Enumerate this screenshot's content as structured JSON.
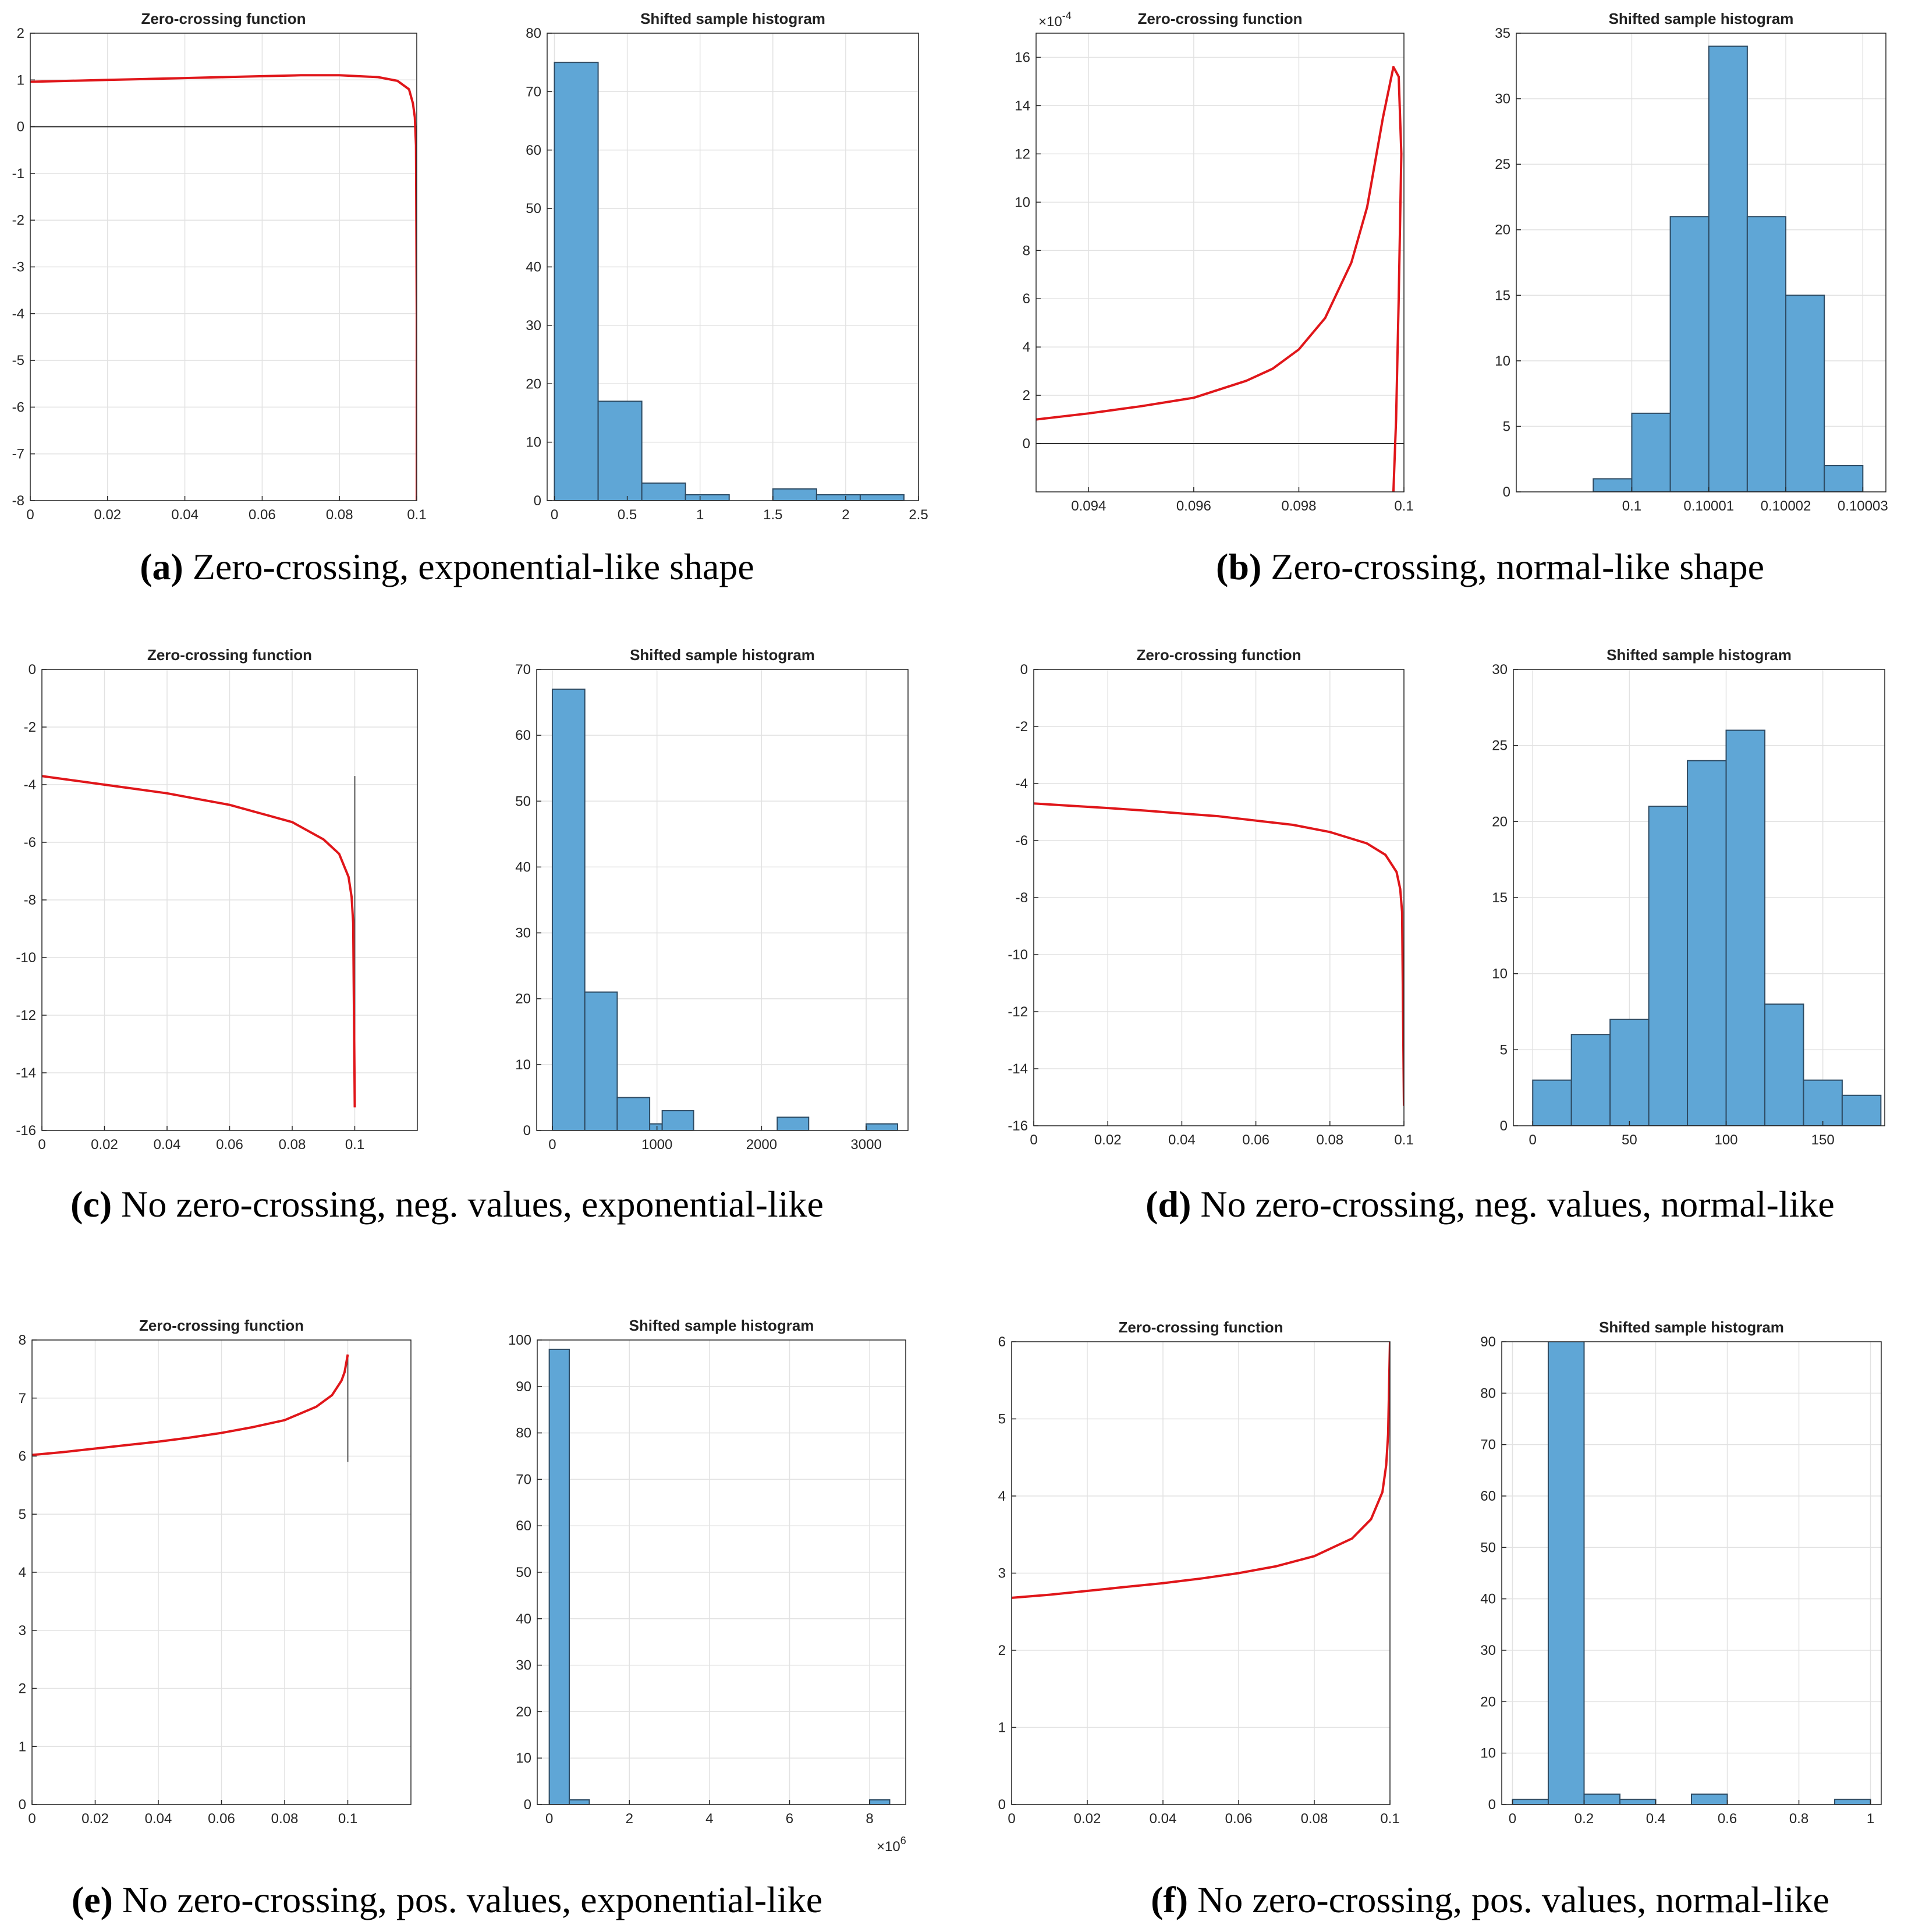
{
  "colors": {
    "curve": "#e0161a",
    "bar_fill": "#5fa6d6",
    "bar_edge": "#2e4b63",
    "grid": "#e2e2e2",
    "axis": "#262626",
    "zero_line": "#333333"
  },
  "captions": [
    {
      "label": "(a)",
      "text": "Zero-crossing, exponential-like shape"
    },
    {
      "label": "(b)",
      "text": "Zero-crossing, normal-like shape"
    },
    {
      "label": "(c)",
      "text": "No zero-crossing, neg. values, exponential-like"
    },
    {
      "label": "(d)",
      "text": "No zero-crossing, neg. values, normal-like"
    },
    {
      "label": "(e)",
      "text": "No zero-crossing, pos. values, exponential-like"
    },
    {
      "label": "(f)",
      "text": "No zero-crossing, pos. values, normal-like"
    }
  ],
  "chart_data": [
    {
      "id": "a1",
      "type": "line",
      "title": "Zero-crossing function",
      "xlim": [
        0,
        0.1
      ],
      "ylim": [
        -8,
        2
      ],
      "xticks": [
        0,
        0.02,
        0.04,
        0.06,
        0.08,
        0.1
      ],
      "xtick_labels": [
        "0",
        "0.02",
        "0.04",
        "0.06",
        "0.08",
        "0.1"
      ],
      "yticks": [
        -8,
        -7,
        -6,
        -5,
        -4,
        -3,
        -2,
        -1,
        0,
        1,
        2
      ],
      "ytick_labels": [
        "-8",
        "-7",
        "-6",
        "-5",
        "-4",
        "-3",
        "-2",
        "-1",
        "0",
        "1",
        "2"
      ],
      "zero_line": true,
      "x": [
        0,
        0.01,
        0.02,
        0.03,
        0.04,
        0.05,
        0.06,
        0.07,
        0.08,
        0.09,
        0.095,
        0.098,
        0.099,
        0.0995,
        0.0998,
        0.1,
        0.1
      ],
      "y": [
        0.96,
        0.98,
        1.0,
        1.02,
        1.04,
        1.06,
        1.08,
        1.1,
        1.1,
        1.06,
        0.98,
        0.8,
        0.5,
        0.2,
        -0.4,
        -4,
        -8
      ]
    },
    {
      "id": "a2",
      "type": "bar",
      "title": "Shifted sample histogram",
      "xlim": [
        -0.05,
        2.5
      ],
      "ylim": [
        0,
        80
      ],
      "xticks": [
        0,
        0.5,
        1,
        1.5,
        2,
        2.5
      ],
      "xtick_labels": [
        "0",
        "0.5",
        "1",
        "1.5",
        "2",
        "2.5"
      ],
      "yticks": [
        0,
        10,
        20,
        30,
        40,
        50,
        60,
        70,
        80
      ],
      "ytick_labels": [
        "0",
        "10",
        "20",
        "30",
        "40",
        "50",
        "60",
        "70",
        "80"
      ],
      "bin_edges": [
        0,
        0.3,
        0.6,
        0.9,
        1.2,
        1.5,
        1.8,
        2.1,
        2.4
      ],
      "values": [
        75,
        17,
        3,
        1,
        0,
        2,
        1,
        1
      ]
    },
    {
      "id": "b1",
      "type": "line",
      "title": "Zero-crossing function",
      "xlim": [
        0.093,
        0.1
      ],
      "ylim": [
        -2,
        17
      ],
      "xticks": [
        0.094,
        0.096,
        0.098,
        0.1
      ],
      "xtick_labels": [
        "0.094",
        "0.096",
        "0.098",
        "0.1"
      ],
      "yticks": [
        0,
        2,
        4,
        6,
        8,
        10,
        12,
        14,
        16
      ],
      "ytick_labels": [
        "0",
        "2",
        "4",
        "6",
        "8",
        "10",
        "12",
        "14",
        "16"
      ],
      "exponent_label": "×10",
      "exponent_power": "-4",
      "zero_line": true,
      "x": [
        0.093,
        0.094,
        0.095,
        0.096,
        0.097,
        0.0975,
        0.098,
        0.0985,
        0.099,
        0.0993,
        0.0996,
        0.0998,
        0.0999,
        0.09995,
        0.0999,
        0.09985,
        0.0998
      ],
      "y": [
        1.0,
        1.25,
        1.55,
        1.9,
        2.6,
        3.1,
        3.9,
        5.2,
        7.5,
        9.8,
        13.5,
        15.6,
        15.2,
        12.0,
        6.0,
        1.0,
        -2.0
      ]
    },
    {
      "id": "b2",
      "type": "bar",
      "title": "Shifted sample histogram",
      "xlim": [
        0.099985,
        0.100033
      ],
      "ylim": [
        0,
        35
      ],
      "xticks": [
        0.1,
        0.10001,
        0.10002,
        0.10003
      ],
      "xtick_labels": [
        "0.1",
        "0.10001",
        "0.10002",
        "0.10003"
      ],
      "yticks": [
        0,
        5,
        10,
        15,
        20,
        25,
        30,
        35
      ],
      "ytick_labels": [
        "0",
        "5",
        "10",
        "15",
        "20",
        "25",
        "30",
        "35"
      ],
      "bin_edges": [
        0.099995,
        0.1,
        0.100005,
        0.10001,
        0.100015,
        0.10002,
        0.100025,
        0.10003
      ],
      "values": [
        1,
        6,
        21,
        34,
        21,
        15,
        2
      ]
    },
    {
      "id": "c1",
      "type": "line",
      "title": "Zero-crossing function",
      "xlim": [
        0,
        0.12
      ],
      "ylim": [
        -16,
        0
      ],
      "xticks": [
        0,
        0.02,
        0.04,
        0.06,
        0.08,
        0.1
      ],
      "xtick_labels": [
        "0",
        "0.02",
        "0.04",
        "0.06",
        "0.08",
        "0.1"
      ],
      "yticks": [
        -16,
        -14,
        -12,
        -10,
        -8,
        -6,
        -4,
        -2,
        0
      ],
      "ytick_labels": [
        "-16",
        "-14",
        "-12",
        "-10",
        "-8",
        "-6",
        "-4",
        "-2",
        "0"
      ],
      "zero_line": false,
      "vline": {
        "x": 0.1,
        "y0": -15,
        "y1": -3.7
      },
      "x": [
        0,
        0.01,
        0.02,
        0.03,
        0.04,
        0.05,
        0.06,
        0.07,
        0.08,
        0.09,
        0.095,
        0.098,
        0.099,
        0.0995,
        0.1
      ],
      "y": [
        -3.7,
        -3.85,
        -4.0,
        -4.15,
        -4.3,
        -4.5,
        -4.7,
        -5.0,
        -5.3,
        -5.9,
        -6.4,
        -7.2,
        -7.9,
        -8.8,
        -15.2
      ]
    },
    {
      "id": "c2",
      "type": "bar",
      "title": "Shifted sample histogram",
      "xlim": [
        -150,
        3400
      ],
      "ylim": [
        0,
        70
      ],
      "xticks": [
        0,
        1000,
        2000,
        3000
      ],
      "xtick_labels": [
        "0",
        "1000",
        "2000",
        "3000"
      ],
      "yticks": [
        0,
        10,
        20,
        30,
        40,
        50,
        60,
        70
      ],
      "ytick_labels": [
        "0",
        "10",
        "20",
        "30",
        "40",
        "50",
        "60",
        "70"
      ],
      "bin_edges": [
        0,
        310,
        620,
        930,
        1050,
        1350,
        2150,
        2450,
        3000,
        3300
      ],
      "values": [
        67,
        21,
        5,
        1,
        3,
        0,
        2,
        0,
        1
      ]
    },
    {
      "id": "d1",
      "type": "line",
      "title": "Zero-crossing function",
      "xlim": [
        0,
        0.1
      ],
      "ylim": [
        -16,
        0
      ],
      "xticks": [
        0,
        0.02,
        0.04,
        0.06,
        0.08,
        0.1
      ],
      "xtick_labels": [
        "0",
        "0.02",
        "0.04",
        "0.06",
        "0.08",
        "0.1"
      ],
      "yticks": [
        -16,
        -14,
        -12,
        -10,
        -8,
        -6,
        -4,
        -2,
        0
      ],
      "ytick_labels": [
        "-16",
        "-14",
        "-12",
        "-10",
        "-8",
        "-6",
        "-4",
        "-2",
        "0"
      ],
      "zero_line": false,
      "x": [
        0,
        0.01,
        0.02,
        0.03,
        0.04,
        0.05,
        0.06,
        0.07,
        0.08,
        0.09,
        0.095,
        0.098,
        0.099,
        0.0995,
        0.1
      ],
      "y": [
        -4.7,
        -4.78,
        -4.86,
        -4.95,
        -5.05,
        -5.15,
        -5.3,
        -5.45,
        -5.7,
        -6.1,
        -6.5,
        -7.1,
        -7.7,
        -8.5,
        -15.3
      ]
    },
    {
      "id": "d2",
      "type": "bar",
      "title": "Shifted sample histogram",
      "xlim": [
        -10,
        182
      ],
      "ylim": [
        0,
        30
      ],
      "xticks": [
        0,
        50,
        100,
        150
      ],
      "xtick_labels": [
        "0",
        "50",
        "100",
        "150"
      ],
      "yticks": [
        0,
        5,
        10,
        15,
        20,
        25,
        30
      ],
      "ytick_labels": [
        "0",
        "5",
        "10",
        "15",
        "20",
        "25",
        "30"
      ],
      "bin_edges": [
        0,
        20,
        40,
        60,
        80,
        100,
        120,
        140,
        160,
        180
      ],
      "values": [
        3,
        6,
        7,
        21,
        24,
        26,
        8,
        3,
        2
      ]
    },
    {
      "id": "e1",
      "type": "line",
      "title": "Zero-crossing function",
      "xlim": [
        0,
        0.12
      ],
      "ylim": [
        0,
        8
      ],
      "xticks": [
        0,
        0.02,
        0.04,
        0.06,
        0.08,
        0.1
      ],
      "xtick_labels": [
        "0",
        "0.02",
        "0.04",
        "0.06",
        "0.08",
        "0.1"
      ],
      "yticks": [
        0,
        1,
        2,
        3,
        4,
        5,
        6,
        7,
        8
      ],
      "ytick_labels": [
        "0",
        "1",
        "2",
        "3",
        "4",
        "5",
        "6",
        "7",
        "8"
      ],
      "zero_line": false,
      "vline": {
        "x": 0.1,
        "y0": 5.9,
        "y1": 7.7
      },
      "x": [
        0,
        0.01,
        0.02,
        0.03,
        0.04,
        0.05,
        0.06,
        0.07,
        0.08,
        0.09,
        0.095,
        0.098,
        0.099,
        0.1
      ],
      "y": [
        6.02,
        6.07,
        6.13,
        6.19,
        6.25,
        6.32,
        6.4,
        6.5,
        6.62,
        6.85,
        7.05,
        7.3,
        7.45,
        7.75
      ]
    },
    {
      "id": "e2",
      "type": "bar",
      "title": "Shifted sample histogram",
      "xlim": [
        -0.3,
        8.9
      ],
      "ylim": [
        0,
        100
      ],
      "xticks": [
        0,
        2,
        4,
        6,
        8
      ],
      "xtick_labels": [
        "0",
        "2",
        "4",
        "6",
        "8"
      ],
      "yticks": [
        0,
        10,
        20,
        30,
        40,
        50,
        60,
        70,
        80,
        90,
        100
      ],
      "ytick_labels": [
        "0",
        "10",
        "20",
        "30",
        "40",
        "50",
        "60",
        "70",
        "80",
        "90",
        "100"
      ],
      "exponent_label": "×10",
      "exponent_power": "6",
      "exponent_position": "bottom-right",
      "bin_edges": [
        0,
        0.5,
        1.0,
        8.0,
        8.5
      ],
      "values": [
        98,
        1,
        0,
        1
      ]
    },
    {
      "id": "f1",
      "type": "line",
      "title": "Zero-crossing function",
      "xlim": [
        0,
        0.1
      ],
      "ylim": [
        0,
        6
      ],
      "xticks": [
        0,
        0.02,
        0.04,
        0.06,
        0.08,
        0.1
      ],
      "xtick_labels": [
        "0",
        "0.02",
        "0.04",
        "0.06",
        "0.08",
        "0.1"
      ],
      "yticks": [
        0,
        1,
        2,
        3,
        4,
        5,
        6
      ],
      "ytick_labels": [
        "0",
        "1",
        "2",
        "3",
        "4",
        "5",
        "6"
      ],
      "zero_line": false,
      "x": [
        0,
        0.01,
        0.02,
        0.03,
        0.04,
        0.05,
        0.06,
        0.07,
        0.08,
        0.09,
        0.095,
        0.098,
        0.099,
        0.0995,
        0.1
      ],
      "y": [
        2.68,
        2.72,
        2.77,
        2.82,
        2.87,
        2.93,
        3.0,
        3.09,
        3.22,
        3.45,
        3.7,
        4.05,
        4.4,
        4.8,
        6.0
      ]
    },
    {
      "id": "f2",
      "type": "bar",
      "title": "Shifted sample histogram",
      "xlim": [
        -0.03,
        1.03
      ],
      "ylim": [
        0,
        90
      ],
      "xticks": [
        0,
        0.2,
        0.4,
        0.6,
        0.8,
        1
      ],
      "xtick_labels": [
        "0",
        "0.2",
        "0.4",
        "0.6",
        "0.8",
        "1"
      ],
      "yticks": [
        0,
        10,
        20,
        30,
        40,
        50,
        60,
        70,
        80,
        90
      ],
      "ytick_labels": [
        "0",
        "10",
        "20",
        "30",
        "40",
        "50",
        "60",
        "70",
        "80",
        "90"
      ],
      "bin_edges": [
        0,
        0.1,
        0.2,
        0.3,
        0.4,
        0.5,
        0.6,
        0.7,
        0.8,
        0.9,
        1.0
      ],
      "values": [
        1,
        93,
        2,
        1,
        0,
        2,
        0,
        0,
        0,
        1
      ]
    }
  ]
}
